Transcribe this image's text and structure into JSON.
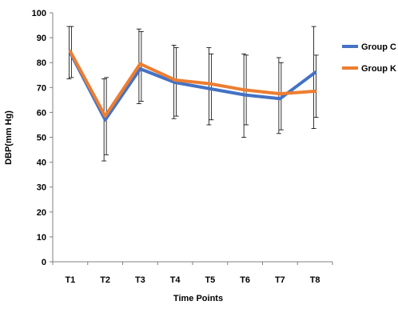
{
  "chart_data": {
    "type": "line",
    "title": "",
    "xlabel": "Time Points",
    "ylabel": "DBP(mm Hg)",
    "ylim": [
      0,
      100
    ],
    "yticks": [
      0,
      10,
      20,
      30,
      40,
      50,
      60,
      70,
      80,
      90,
      100
    ],
    "categories": [
      "T1",
      "T2",
      "T3",
      "T4",
      "T5",
      "T6",
      "T7",
      "T8"
    ],
    "grid": false,
    "legend_position": "right",
    "series": [
      {
        "name": "Group C",
        "color": "#4472C4",
        "values": [
          84,
          57,
          77.5,
          72,
          69.5,
          67,
          65.5,
          76
        ],
        "error_low": [
          73.5,
          40.5,
          63.5,
          57.5,
          55,
          50,
          51.5,
          53.5
        ],
        "error_high": [
          94.5,
          73.5,
          93.5,
          87,
          86,
          83.5,
          82,
          94.5
        ]
      },
      {
        "name": "Group K",
        "color": "#ED7D31",
        "values": [
          84.5,
          58.5,
          79.5,
          73,
          71.5,
          69,
          67.5,
          68.5
        ],
        "error_low": [
          74,
          43,
          64.5,
          58.5,
          57,
          55,
          53,
          58
        ],
        "error_high": [
          94.5,
          74,
          92.5,
          86,
          83.5,
          83,
          80,
          83
        ]
      }
    ]
  }
}
